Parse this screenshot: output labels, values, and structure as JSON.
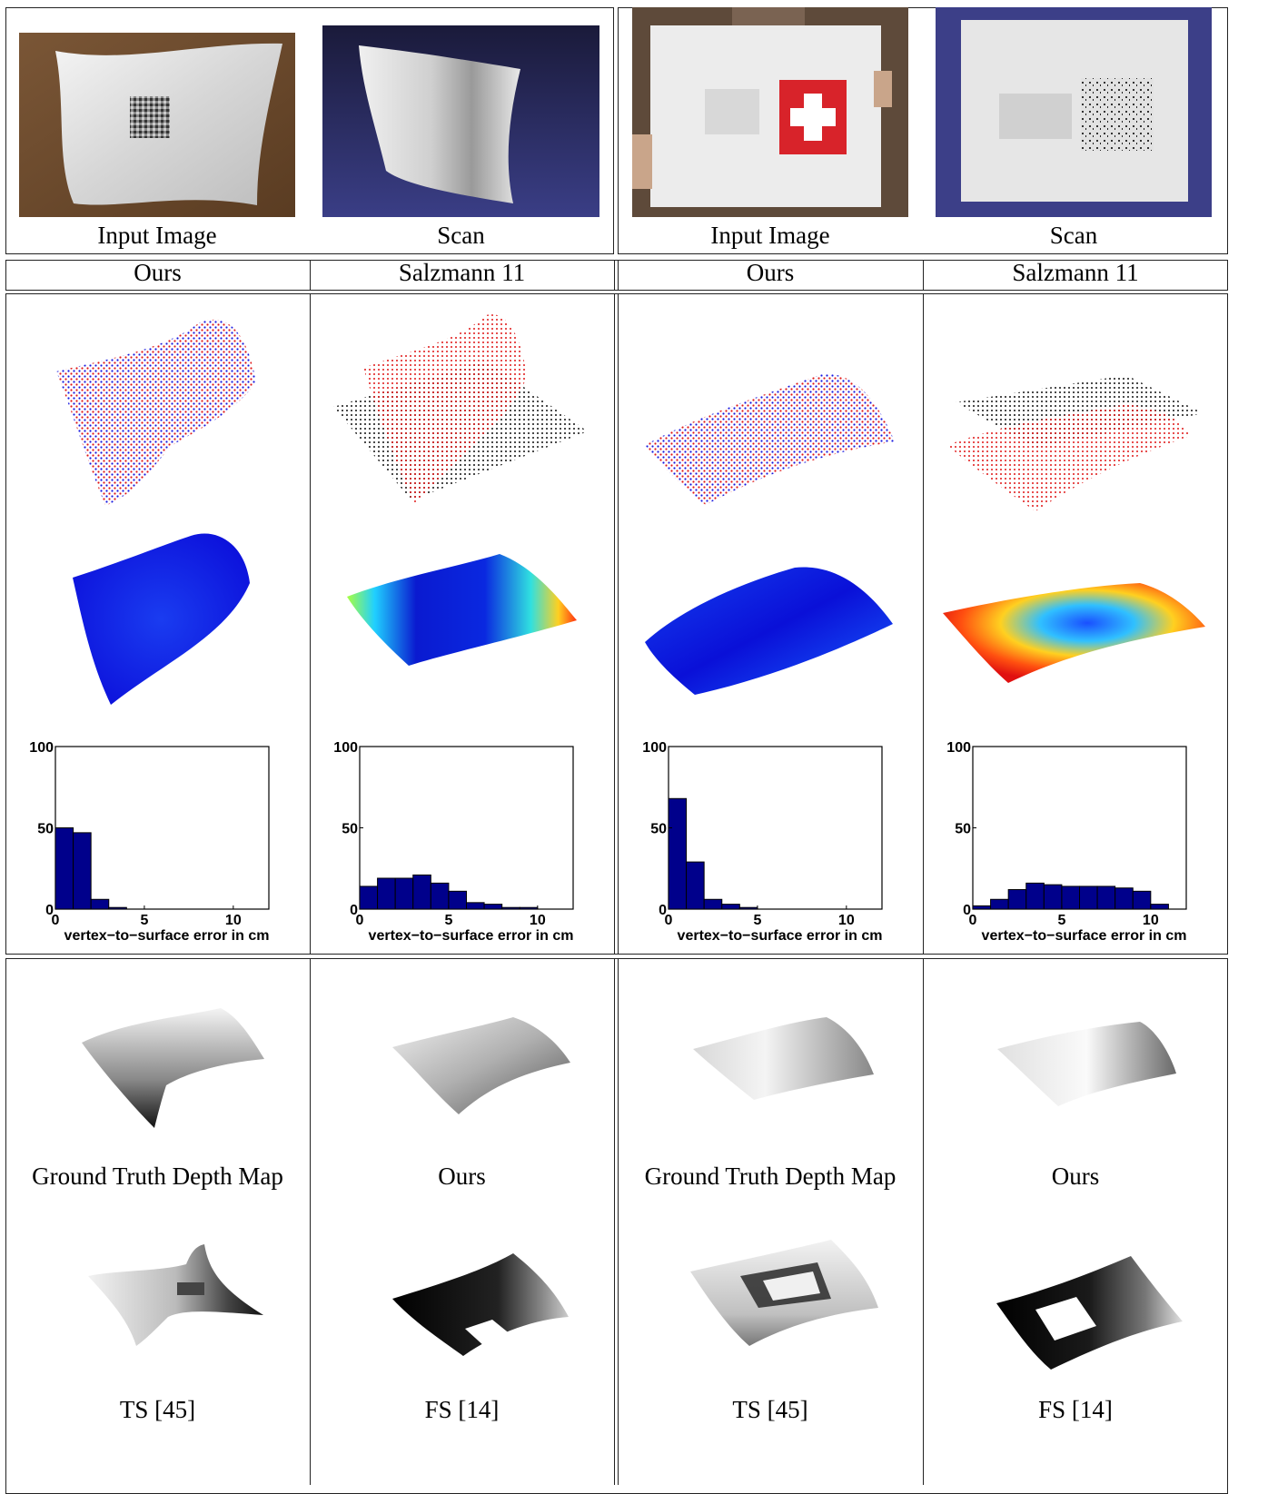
{
  "top_captions": [
    "Input Image",
    "Scan",
    "Input Image",
    "Scan"
  ],
  "method_headers": [
    "Ours",
    "Salzmann 11",
    "Ours",
    "Salzmann 11"
  ],
  "depth_captions_row1": [
    "Ground Truth Depth Map",
    "Ours",
    "Ground Truth Depth Map",
    "Ours"
  ],
  "depth_captions_row2": [
    "TS [45]",
    "FS [14]",
    "TS [45]",
    "FS [14]"
  ],
  "colors": {
    "bar": "#00008b",
    "dots_ours": "#1515e0",
    "dots_scan": "#e01515",
    "dots_template": "#111111"
  },
  "chart_data": [
    {
      "type": "bar",
      "x": [
        0.5,
        1.5,
        2.5,
        3.5,
        4.5,
        5.5,
        6.5,
        7.5,
        8.5,
        9.5,
        10.5
      ],
      "values": [
        50,
        47,
        6,
        1,
        0,
        0,
        0,
        0,
        0,
        0,
        0
      ],
      "xlabel": "vertex−to−surface error in cm",
      "xlim": [
        0,
        12
      ],
      "ylim": [
        0,
        100
      ],
      "xticks": [
        "0",
        "5",
        "10"
      ],
      "yticks": [
        "0",
        "50",
        "100"
      ]
    },
    {
      "type": "bar",
      "x": [
        0.5,
        1.5,
        2.5,
        3.5,
        4.5,
        5.5,
        6.5,
        7.5,
        8.5,
        9.5,
        10.5
      ],
      "values": [
        14,
        19,
        19,
        21,
        16,
        11,
        4,
        3,
        1,
        1,
        0
      ],
      "xlabel": "vertex−to−surface error in cm",
      "xlim": [
        0,
        12
      ],
      "ylim": [
        0,
        100
      ],
      "xticks": [
        "0",
        "5",
        "10"
      ],
      "yticks": [
        "0",
        "50",
        "100"
      ]
    },
    {
      "type": "bar",
      "x": [
        0.5,
        1.5,
        2.5,
        3.5,
        4.5,
        5.5,
        6.5,
        7.5,
        8.5,
        9.5,
        10.5
      ],
      "values": [
        68,
        29,
        6,
        3,
        1,
        0,
        0,
        0,
        0,
        0,
        0
      ],
      "xlabel": "vertex−to−surface error in cm",
      "xlim": [
        0,
        12
      ],
      "ylim": [
        0,
        100
      ],
      "xticks": [
        "0",
        "5",
        "10"
      ],
      "yticks": [
        "0",
        "50",
        "100"
      ]
    },
    {
      "type": "bar",
      "x": [
        0.5,
        1.5,
        2.5,
        3.5,
        4.5,
        5.5,
        6.5,
        7.5,
        8.5,
        9.5,
        10.5
      ],
      "values": [
        2,
        6,
        12,
        16,
        15,
        14,
        14,
        14,
        13,
        11,
        3
      ],
      "xlabel": "vertex−to−surface error in cm",
      "xlim": [
        0,
        12
      ],
      "ylim": [
        0,
        100
      ],
      "xticks": [
        "0",
        "5",
        "10"
      ],
      "yticks": [
        "0",
        "50",
        "100"
      ]
    }
  ]
}
